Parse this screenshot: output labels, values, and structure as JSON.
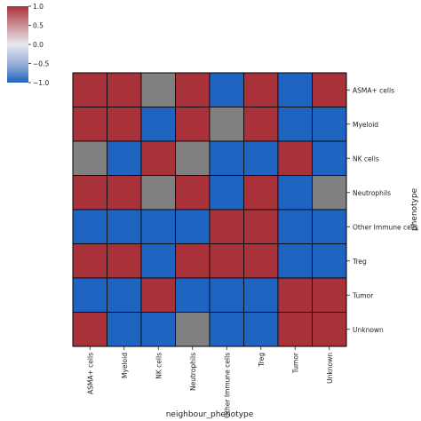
{
  "chart_data": {
    "type": "heatmap",
    "title": "",
    "xlabel": "neighbour_phenotype",
    "ylabel": "phenotype",
    "x_categories": [
      "ASMA+ cells",
      "Myeloid",
      "NK cells",
      "Neutrophils",
      "Other Immune cells",
      "Treg",
      "Tumor",
      "Unknown"
    ],
    "y_categories": [
      "ASMA+ cells",
      "Myeloid",
      "NK cells",
      "Neutrophils",
      "Other Immune cells",
      "Treg",
      "Tumor",
      "Unknown"
    ],
    "values": [
      [
        1,
        1,
        null,
        1,
        -1,
        1,
        -1,
        1
      ],
      [
        1,
        1,
        -1,
        1,
        null,
        1,
        -1,
        -1
      ],
      [
        null,
        -1,
        1,
        null,
        -1,
        -1,
        1,
        -1
      ],
      [
        1,
        1,
        null,
        1,
        -1,
        1,
        -1,
        null
      ],
      [
        -1,
        -1,
        -1,
        -1,
        1,
        1,
        -1,
        -1
      ],
      [
        1,
        1,
        -1,
        1,
        1,
        1,
        -1,
        -1
      ],
      [
        -1,
        -1,
        1,
        -1,
        -1,
        -1,
        1,
        1
      ],
      [
        1,
        -1,
        -1,
        null,
        -1,
        -1,
        1,
        1
      ]
    ],
    "missing_color": "#808080",
    "colormap": "vlag",
    "colors": {
      "positive": "#a8313a",
      "negative": "#1f64c0",
      "mid": "#e8e8ee"
    },
    "colorbar": {
      "vmin": -1.0,
      "vmax": 1.0,
      "ticks": [
        1.0,
        0.5,
        0.0,
        -0.5,
        -1.0
      ],
      "tick_labels": [
        "1.0",
        "0.5",
        "0.0",
        "−0.5",
        "−1.0"
      ]
    },
    "grid": true,
    "legend": "top-left colorbar"
  }
}
